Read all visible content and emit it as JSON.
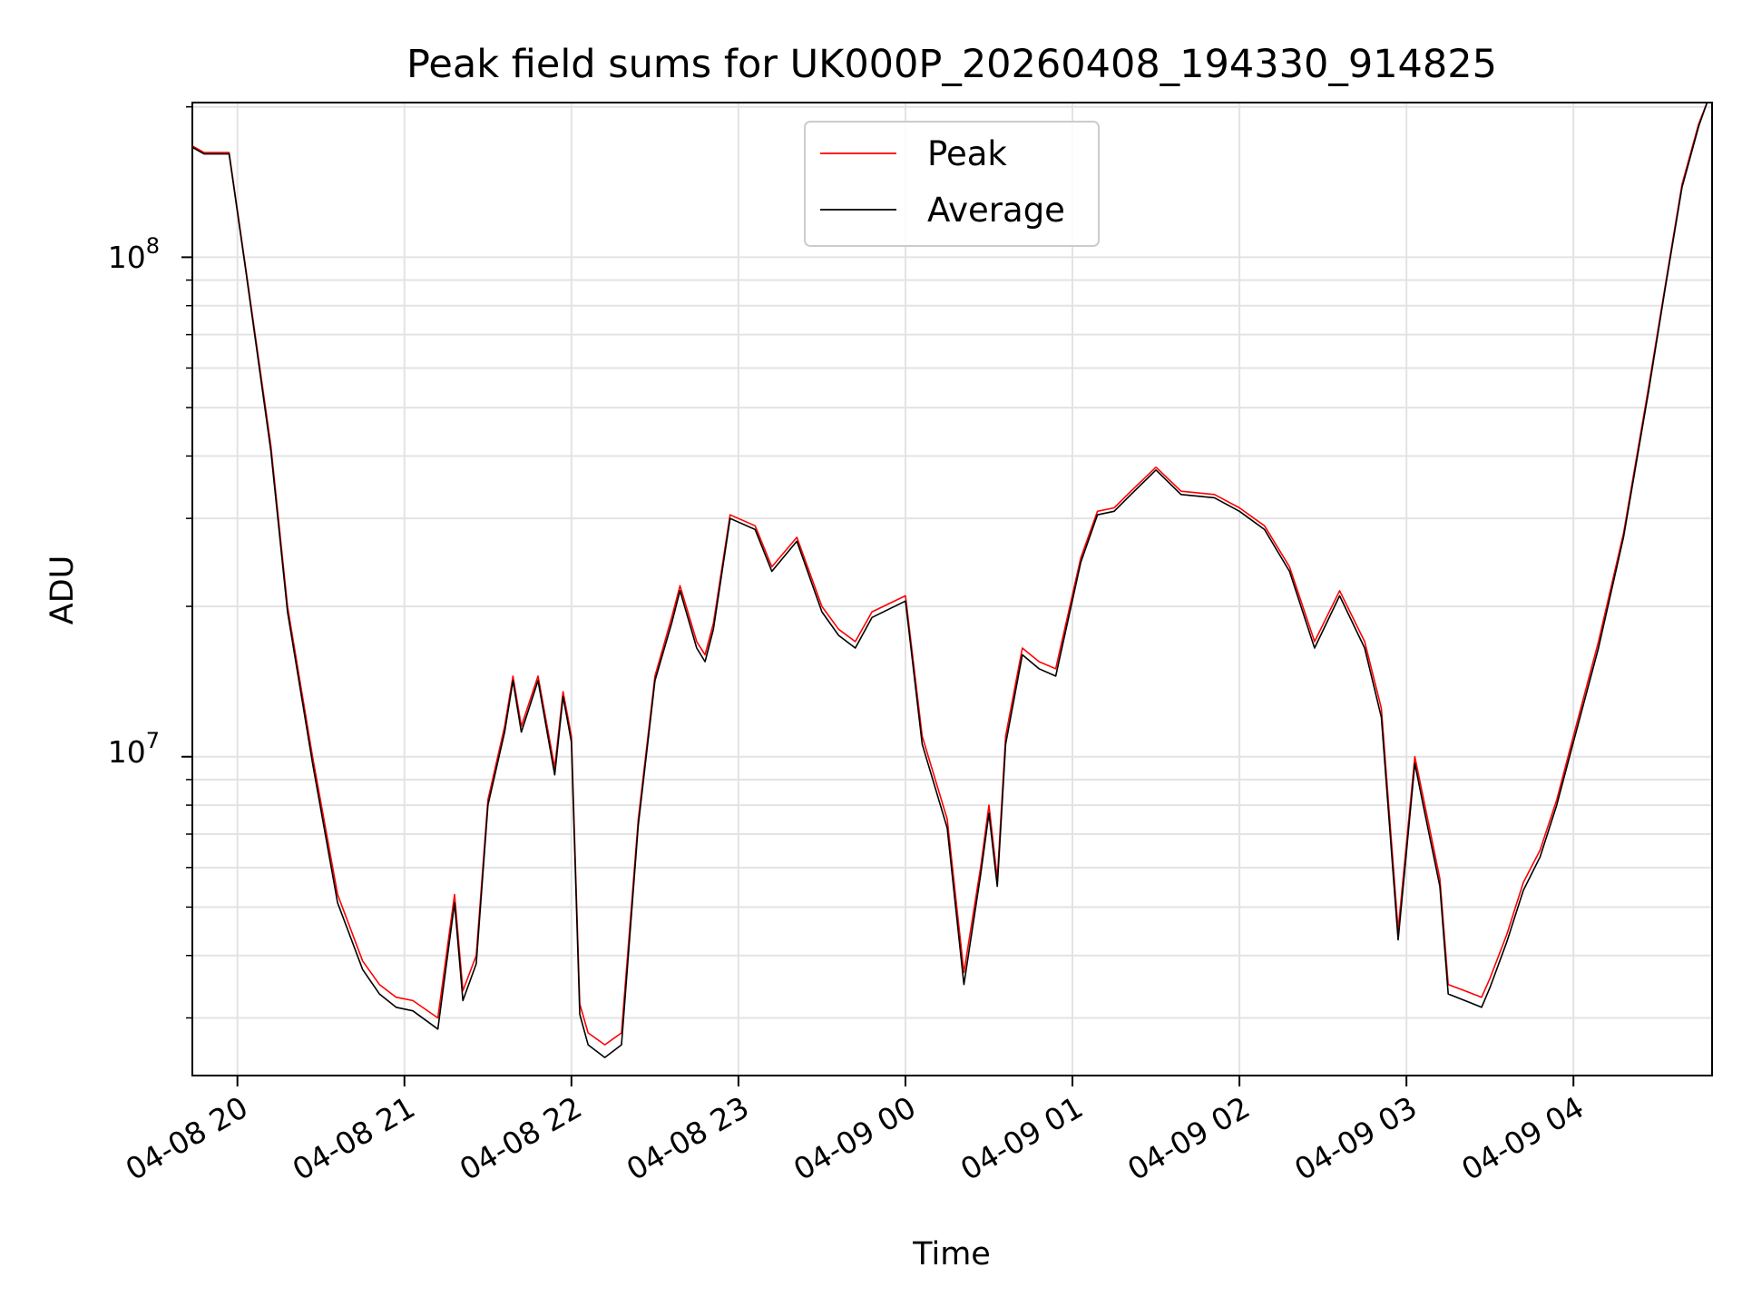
{
  "chart_data": {
    "type": "line",
    "title": "Peak field sums for UK000P_20260408_194330_914825",
    "xlabel": "Time",
    "ylabel": "ADU",
    "yscale": "log",
    "ylim": [
      2300000,
      204000000
    ],
    "xlim_hours": [
      19.73,
      28.83
    ],
    "grid": true,
    "legend_position": "upper-center",
    "x_tick_hours": [
      20,
      21,
      22,
      23,
      24,
      25,
      26,
      27,
      28
    ],
    "x_tick_labels": [
      "04-08 20",
      "04-08 21",
      "04-08 22",
      "04-08 23",
      "04-09 00",
      "04-09 01",
      "04-09 02",
      "04-09 03",
      "04-09 04"
    ],
    "y_major_ticks": [
      {
        "value": 10000000,
        "base": "10",
        "exp": "7"
      },
      {
        "value": 100000000,
        "base": "10",
        "exp": "8"
      }
    ],
    "x_hours": [
      19.73,
      19.8,
      19.95,
      20.05,
      20.2,
      20.3,
      20.45,
      20.6,
      20.75,
      20.85,
      20.95,
      21.05,
      21.2,
      21.3,
      21.35,
      21.43,
      21.5,
      21.6,
      21.65,
      21.7,
      21.8,
      21.9,
      21.95,
      22.0,
      22.05,
      22.1,
      22.2,
      22.3,
      22.4,
      22.5,
      22.6,
      22.65,
      22.75,
      22.8,
      22.85,
      22.95,
      23.1,
      23.2,
      23.35,
      23.5,
      23.6,
      23.7,
      23.8,
      24.0,
      24.1,
      24.25,
      24.35,
      24.45,
      24.5,
      24.55,
      24.6,
      24.7,
      24.8,
      24.9,
      25.05,
      25.15,
      25.25,
      25.35,
      25.5,
      25.65,
      25.85,
      26.0,
      26.15,
      26.3,
      26.45,
      26.6,
      26.75,
      26.85,
      26.95,
      27.05,
      27.1,
      27.2,
      27.25,
      27.35,
      27.45,
      27.5,
      27.6,
      27.7,
      27.8,
      27.9,
      28.0,
      28.15,
      28.3,
      28.45,
      28.55,
      28.65,
      28.75,
      28.8,
      28.83
    ],
    "series": [
      {
        "name": "Peak",
        "color": "#ff0000",
        "values": [
          167000000,
          162000000,
          162000000,
          95000000,
          42000000,
          20000000,
          10000000,
          5300000,
          3900000,
          3500000,
          3300000,
          3250000,
          3000000,
          5300000,
          3400000,
          4000000,
          8200000,
          11500000,
          14500000,
          11500000,
          14500000,
          9500000,
          13500000,
          11000000,
          3200000,
          2800000,
          2650000,
          2800000,
          7500000,
          14500000,
          19000000,
          22000000,
          17000000,
          16000000,
          18500000,
          30500000,
          29000000,
          24000000,
          27500000,
          20000000,
          18000000,
          17000000,
          19500000,
          21000000,
          11000000,
          7500000,
          3700000,
          6000000,
          8000000,
          5700000,
          11000000,
          16500000,
          15500000,
          15000000,
          25000000,
          31000000,
          31500000,
          34000000,
          38000000,
          34000000,
          33500000,
          31500000,
          29000000,
          24000000,
          17000000,
          21500000,
          17000000,
          12500000,
          4500000,
          10000000,
          8300000,
          5700000,
          3500000,
          3400000,
          3300000,
          3600000,
          4400000,
          5600000,
          6500000,
          8200000,
          11000000,
          17000000,
          28000000,
          55000000,
          88000000,
          140000000,
          185000000,
          204000000,
          204000000
        ]
      },
      {
        "name": "Average",
        "color": "#000000",
        "values": [
          166000000,
          161000000,
          161000000,
          94000000,
          41000000,
          19500000,
          9700000,
          5100000,
          3750000,
          3350000,
          3150000,
          3100000,
          2850000,
          5100000,
          3250000,
          3850000,
          8000000,
          11200000,
          14200000,
          11200000,
          14200000,
          9200000,
          13200000,
          10700000,
          3050000,
          2650000,
          2500000,
          2650000,
          7300000,
          14200000,
          18500000,
          21500000,
          16500000,
          15500000,
          18000000,
          30000000,
          28500000,
          23500000,
          27000000,
          19500000,
          17500000,
          16500000,
          19000000,
          20500000,
          10600000,
          7200000,
          3500000,
          5800000,
          7700000,
          5500000,
          10600000,
          16000000,
          15000000,
          14500000,
          24500000,
          30500000,
          31000000,
          33500000,
          37500000,
          33500000,
          33000000,
          31000000,
          28500000,
          23500000,
          16500000,
          21000000,
          16500000,
          12000000,
          4300000,
          9700000,
          8000000,
          5500000,
          3350000,
          3250000,
          3150000,
          3450000,
          4250000,
          5400000,
          6300000,
          8000000,
          10700000,
          16500000,
          27500000,
          54000000,
          87000000,
          138000000,
          183000000,
          204000000,
          204000000
        ]
      }
    ]
  }
}
